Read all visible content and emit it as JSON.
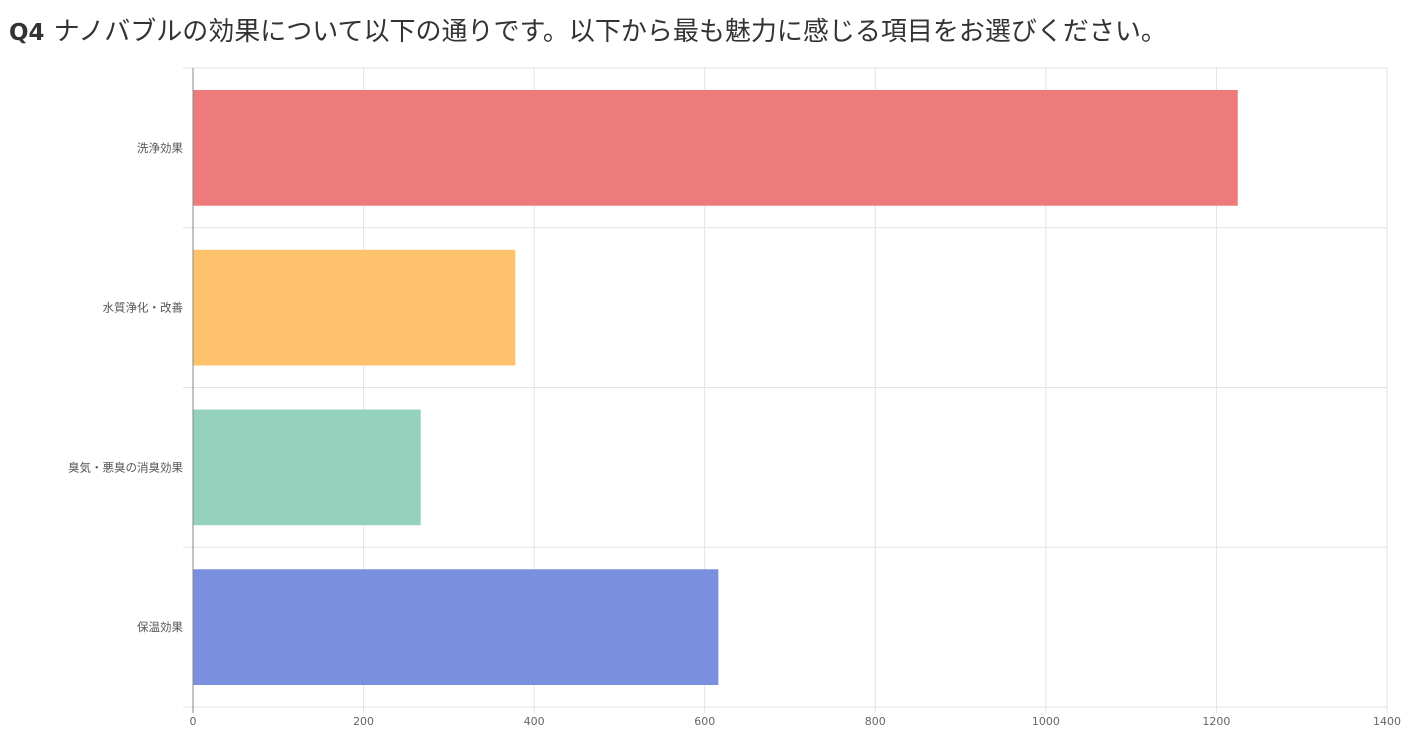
{
  "question": {
    "number": "Q4",
    "text": "ナノバブルの効果について以下の通りです。以下から最も魅力に感じる項目をお選びください。"
  },
  "chart_data": {
    "type": "bar",
    "orientation": "horizontal",
    "categories": [
      "洗浄効果",
      "水質浄化・改善",
      "臭気・悪臭の消臭効果",
      "保温効果"
    ],
    "values": [
      1225,
      378,
      267,
      616
    ],
    "colors": [
      "#ed7b7b",
      "#fec26d",
      "#94d2bd",
      "#7a90df"
    ],
    "xlim": [
      0,
      1400
    ],
    "xticks": [
      0,
      200,
      400,
      600,
      800,
      1000,
      1200,
      1400
    ],
    "grid": true
  }
}
